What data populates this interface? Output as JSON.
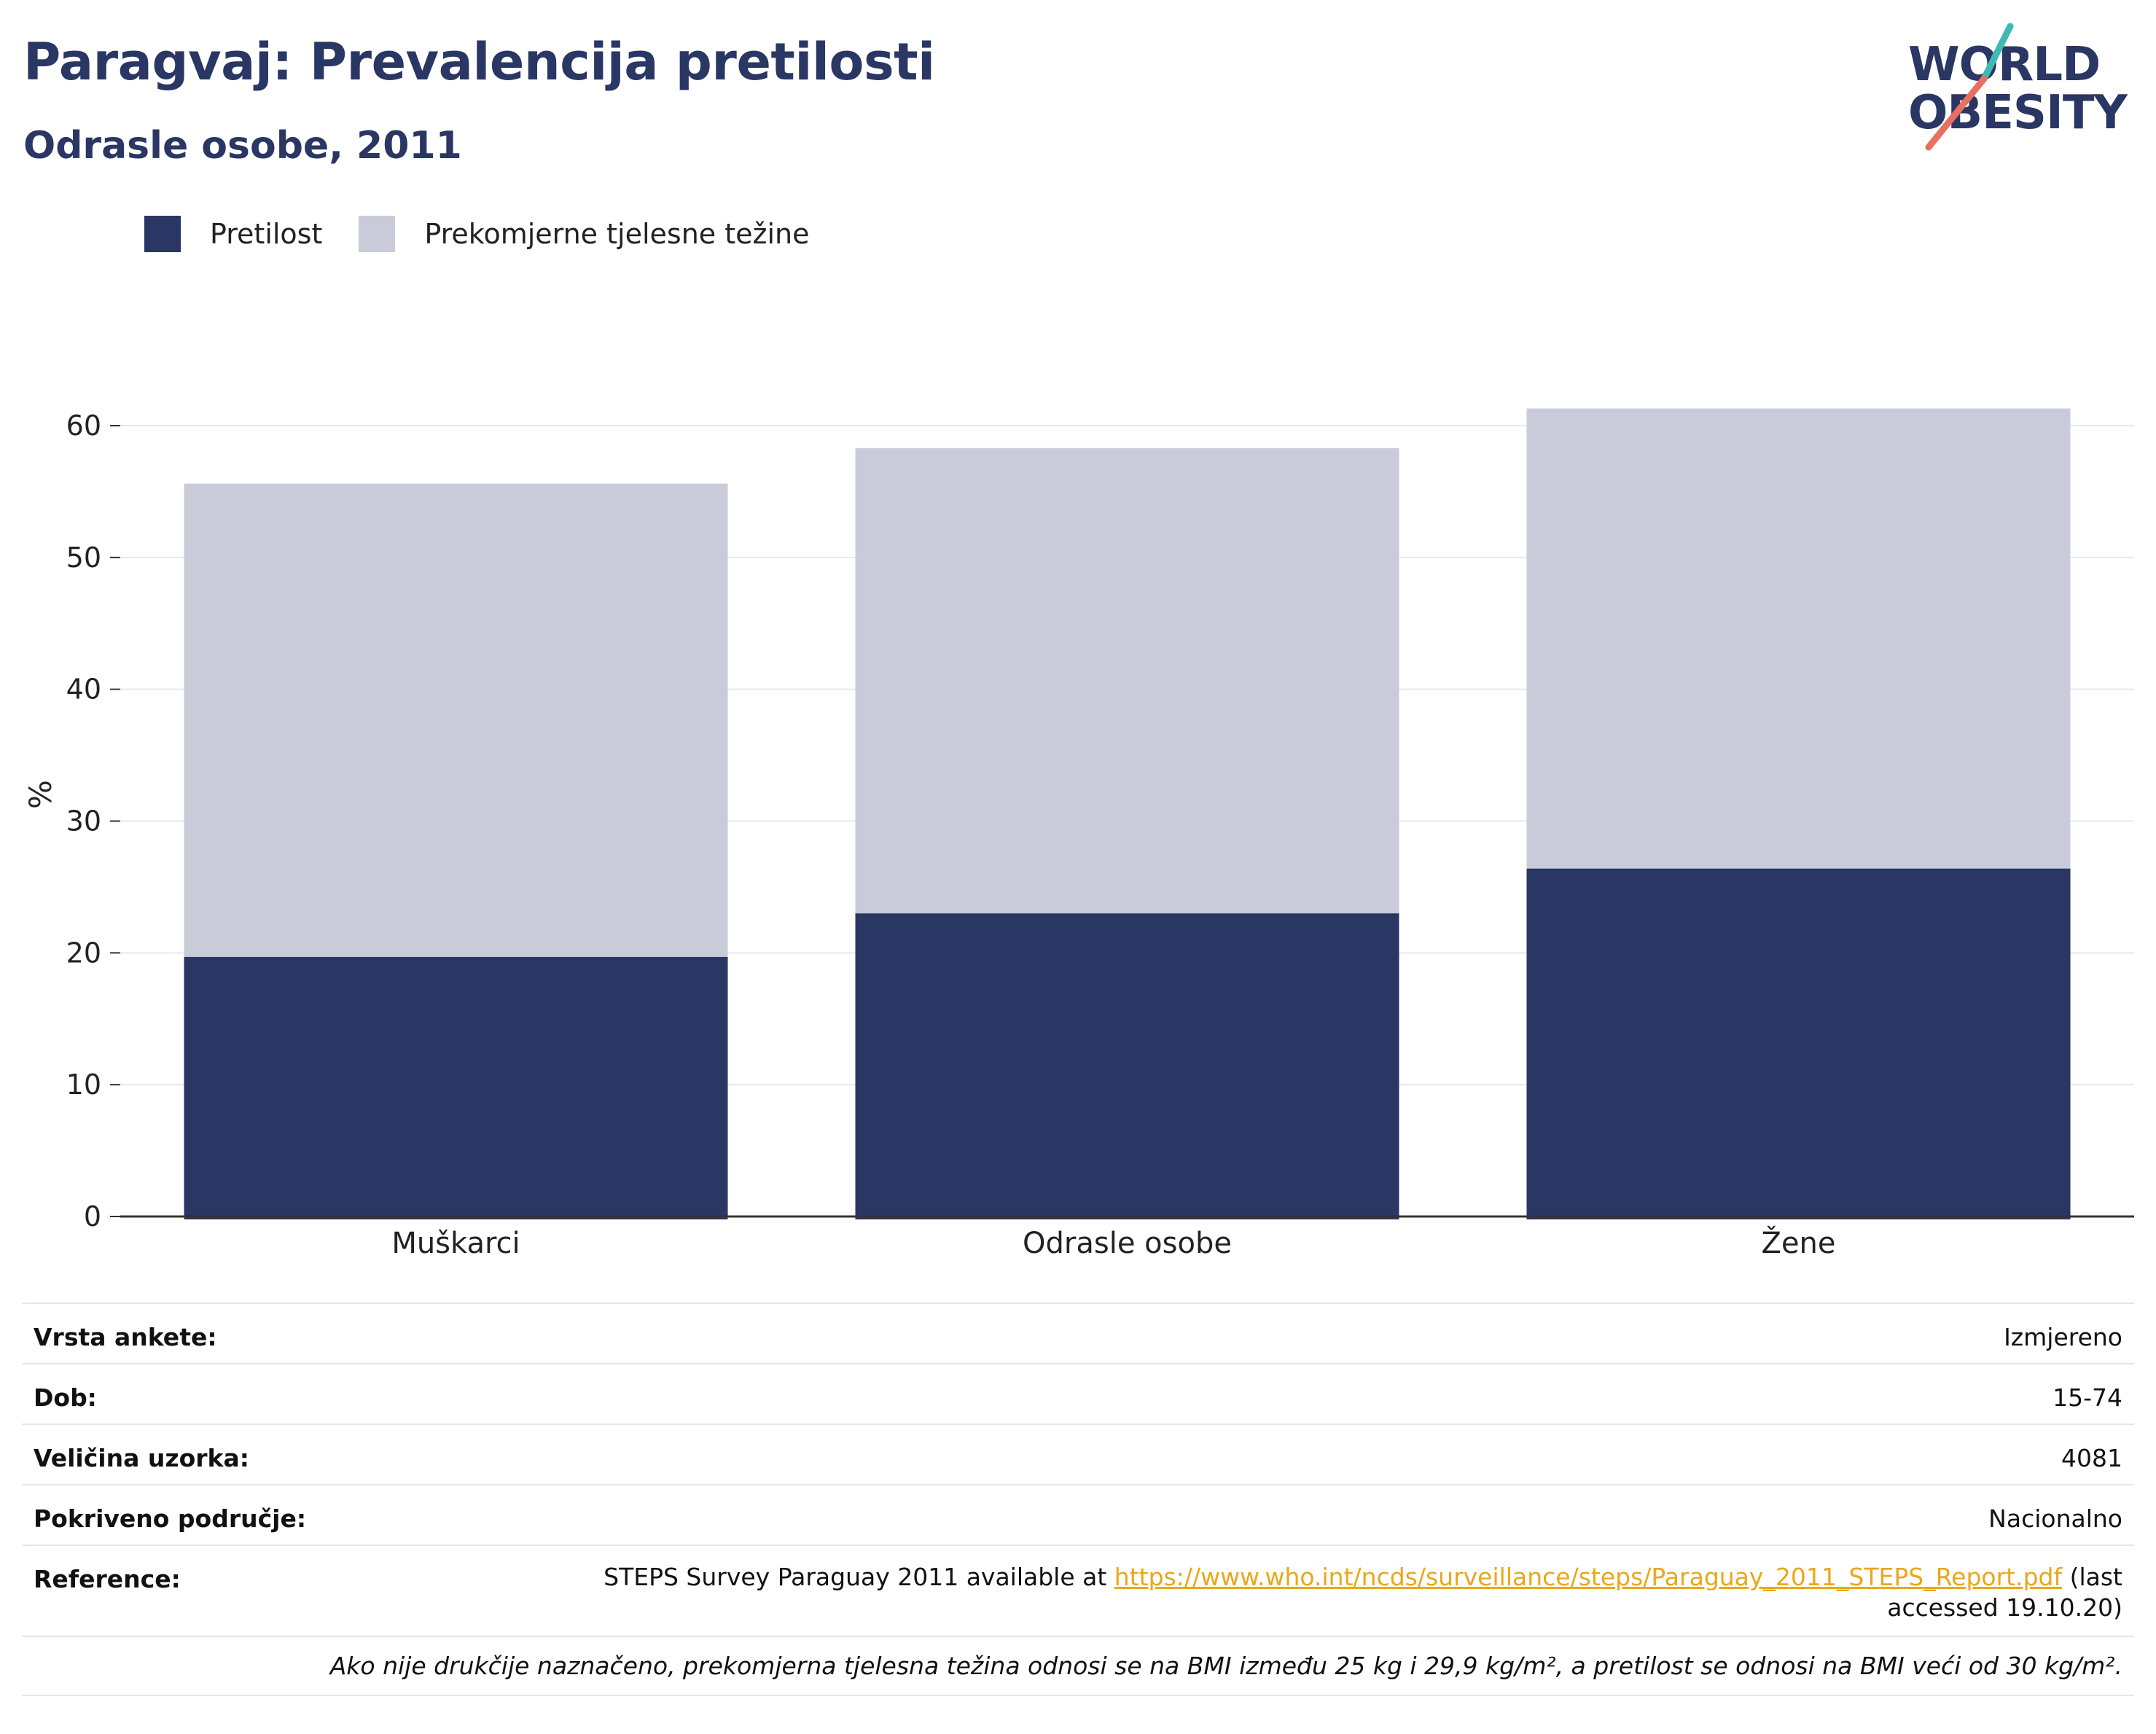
{
  "header": {
    "title": "Paragvaj: Prevalencija pretilosti",
    "subtitle": "Odrasle osobe, 2011"
  },
  "logo": {
    "line1": "WORLD",
    "line2": "OBESITY",
    "slash_colors": [
      "#3fb9b3",
      "#e8705f"
    ]
  },
  "colors": {
    "obesity": "#2a3663",
    "overweight": "#c9ccd8",
    "grid": "#e6e8ee",
    "axis": "#333333",
    "text": "#2a3663"
  },
  "legend": [
    {
      "label": "Pretilost",
      "color": "#2a3663"
    },
    {
      "label": "Prekomjerne tjelesne težine",
      "color": "#c9ccd8"
    }
  ],
  "chart_data": {
    "type": "bar",
    "stacked": true,
    "categories": [
      "Muškarci",
      "Odrasle osobe",
      "Žene"
    ],
    "series": [
      {
        "name": "Pretilost",
        "values": [
          19.7,
          23.0,
          26.4
        ]
      },
      {
        "name": "Prekomjerne tjelesne težine",
        "values": [
          35.9,
          35.3,
          34.9
        ]
      }
    ],
    "ylabel": "%",
    "ylim": [
      0,
      60
    ],
    "yticks": [
      0,
      10,
      20,
      30,
      40,
      50,
      60
    ],
    "grid": true,
    "legend_position": "top-left"
  },
  "info": {
    "survey_type": {
      "label": "Vrsta ankete:",
      "value": "Izmjereno"
    },
    "age": {
      "label": "Dob:",
      "value": "15-74"
    },
    "sample_size": {
      "label": "Veličina uzorka:",
      "value": "4081"
    },
    "area": {
      "label": "Pokriveno područje:",
      "value": "Nacionalno"
    },
    "reference": {
      "label": "Reference:",
      "prefix": "STEPS Survey Paraguay 2011 available at ",
      "link": "https://www.who.int/ncds/surveillance/steps/Paraguay_2011_STEPS_Report.pdf",
      "suffix": " (last accessed 19.10.20)"
    },
    "note": "Ako nije drukčije naznačeno, prekomjerna tjelesna težina odnosi se na BMI između 25 kg i 29,9 kg/m², a pretilost se odnosi na BMI veći od 30 kg/m²."
  }
}
